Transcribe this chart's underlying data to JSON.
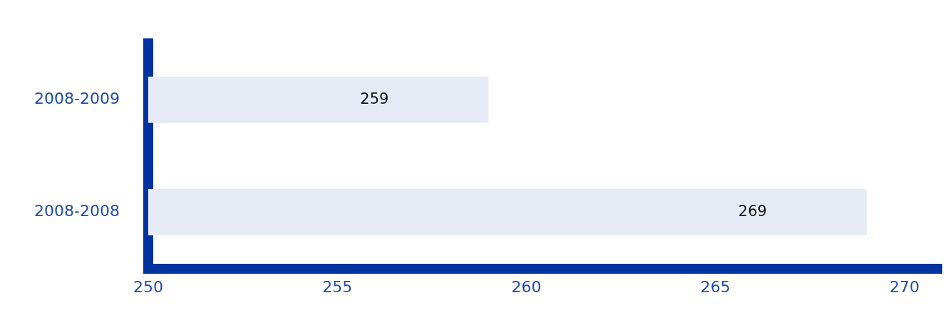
{
  "chart_data": {
    "type": "bar",
    "orientation": "horizontal",
    "categories": [
      "2008-2009",
      "2008-2008"
    ],
    "values": [
      259,
      269
    ],
    "color": "#e6eaf5",
    "xlim": [
      250,
      271
    ],
    "xticks": [
      250,
      255,
      260,
      265,
      270
    ],
    "grid": false,
    "legend": false,
    "data_labels": true
  }
}
